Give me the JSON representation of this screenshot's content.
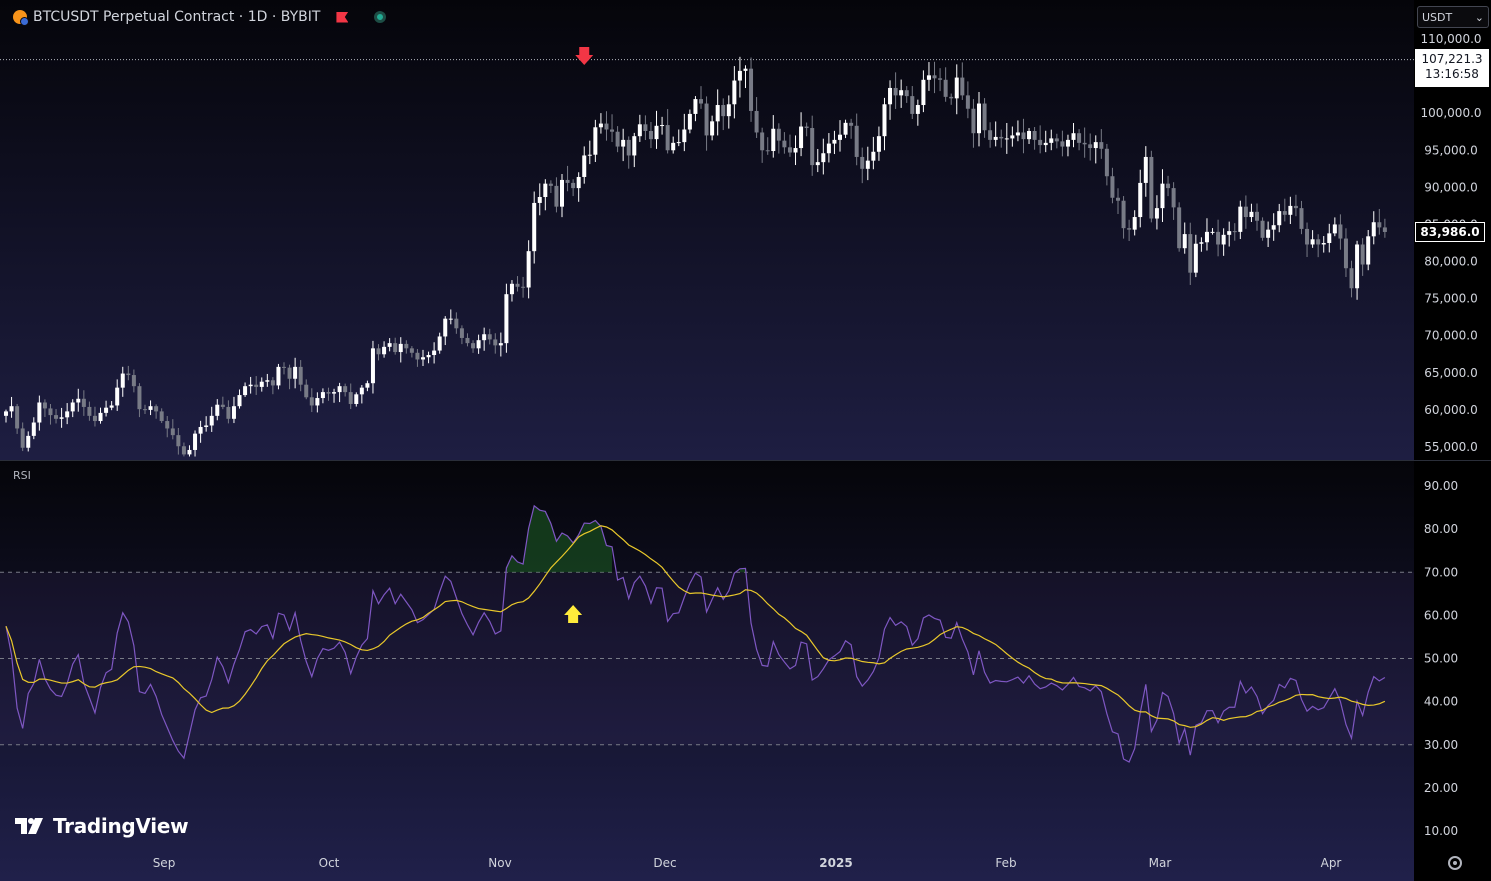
{
  "header": {
    "title": "BTCUSDT Perpetual Contract · 1D · BYBIT",
    "symbol_icon": "bitcoin-icon",
    "flag_icon": "flag-icon",
    "status_icon": "market-status-icon"
  },
  "currency_select": {
    "value": "USDT"
  },
  "price_tag": {
    "price": "107,221.3",
    "countdown": "13:16:58"
  },
  "last_price": "83,986.0",
  "logo": {
    "text": "TradingView"
  },
  "rsi_label": "RSI",
  "colors": {
    "up": "#ffffff",
    "down": "#787b86",
    "rsi": "#7e57c2",
    "rsi_ma": "#e9c82b",
    "marker_down": "#f23645",
    "marker_up": "#ffeb3b",
    "overbought_fill": "#1b5e20"
  },
  "chart_data": [
    {
      "type": "candlestick",
      "title": "BTCUSDT Perpetual Contract · 1D · BYBIT",
      "ylim": [
        53500,
        110300
      ],
      "yticks": [
        "110,000.0",
        "105,000.0",
        "100,000.0",
        "95,000.0",
        "90,000.0",
        "85,000.0",
        "80,000.0",
        "75,000.0",
        "70,000.0",
        "65,000.0",
        "60,000.0",
        "55,000.0"
      ],
      "xticks": [
        {
          "label": "Sep",
          "bold": false
        },
        {
          "label": "Oct",
          "bold": false
        },
        {
          "label": "Nov",
          "bold": false
        },
        {
          "label": "Dec",
          "bold": false
        },
        {
          "label": "2025",
          "bold": true
        },
        {
          "label": "Feb",
          "bold": false
        },
        {
          "label": "Mar",
          "bold": false
        },
        {
          "label": "Apr",
          "bold": false
        }
      ],
      "reference_line": 107221.3,
      "last_price": 83986,
      "closes": [
        59800,
        60500,
        57500,
        54900,
        56500,
        58300,
        61000,
        60200,
        59300,
        58800,
        59000,
        59800,
        61000,
        61500,
        60400,
        59200,
        58500,
        59600,
        60300,
        60600,
        63000,
        64900,
        64700,
        63200,
        60100,
        60000,
        60500,
        59800,
        58500,
        57500,
        56600,
        55100,
        54000,
        54600,
        56800,
        57700,
        57900,
        59200,
        60700,
        60400,
        58800,
        60500,
        62000,
        63200,
        63400,
        63100,
        63800,
        64000,
        63300,
        65800,
        65700,
        64200,
        65800,
        63400,
        61700,
        60600,
        61600,
        62400,
        62200,
        62400,
        63200,
        62400,
        60800,
        62100,
        63000,
        63600,
        68300,
        67500,
        68500,
        69000,
        67800,
        68900,
        68300,
        67700,
        66800,
        67100,
        67400,
        68000,
        69900,
        72300,
        72300,
        71000,
        69700,
        69000,
        68300,
        69400,
        70200,
        69500,
        68700,
        69000,
        75600,
        77000,
        76600,
        76500,
        81400,
        87900,
        88700,
        90500,
        90200,
        87400,
        91000,
        90600,
        89900,
        91400,
        94300,
        94400,
        98100,
        98600,
        97800,
        97500,
        95500,
        96400,
        94300,
        96900,
        98500,
        97600,
        96500,
        98300,
        98400,
        95000,
        96000,
        96100,
        97800,
        99900,
        101900,
        101300,
        97000,
        98900,
        101100,
        99600,
        101200,
        104400,
        105700,
        106000,
        100300,
        97400,
        95000,
        94900,
        97900,
        96300,
        95400,
        94700,
        95300,
        98200,
        98000,
        93000,
        93400,
        94600,
        95900,
        96400,
        97100,
        98700,
        98300,
        94100,
        92500,
        93600,
        94800,
        96900,
        101200,
        103400,
        102400,
        103100,
        102300,
        99900,
        101100,
        104500,
        105100,
        104700,
        104500,
        102200,
        102000,
        104800,
        102400,
        100600,
        97300,
        101300,
        97700,
        96400,
        96800,
        96600,
        96600,
        97000,
        97400,
        96500,
        97600,
        96400,
        95700,
        96000,
        96600,
        96200,
        95500,
        96400,
        97300,
        96000,
        95800,
        95300,
        96100,
        95200,
        91500,
        88600,
        88200,
        84500,
        84300,
        86000,
        90600,
        94100,
        85800,
        87200,
        90500,
        89900,
        87300,
        81800,
        83700,
        78500,
        82400,
        82600,
        84000,
        84000,
        82300,
        83600,
        84100,
        84000,
        87400,
        86000,
        86700,
        85500,
        83200,
        84300,
        84900,
        86800,
        86300,
        87500,
        87200,
        84400,
        82300,
        83000,
        82300,
        82500,
        83800,
        85000,
        83100,
        79100,
        76400,
        82300,
        79600,
        83400,
        85300,
        84600,
        83986
      ],
      "cand_rng": [
        [
          0,
          56
        ],
        [
          1,
          43
        ],
        [
          2,
          99
        ],
        [
          3,
          53
        ],
        [
          4,
          84
        ],
        [
          5,
          77
        ],
        [
          6,
          52
        ],
        [
          7,
          74
        ],
        [
          8,
          53
        ],
        [
          9,
          39
        ],
        [
          10,
          45
        ],
        [
          11,
          67
        ],
        [
          12,
          79
        ],
        [
          13,
          63
        ],
        [
          14,
          73
        ],
        [
          15,
          64
        ],
        [
          16,
          40
        ],
        [
          17,
          84
        ],
        [
          18,
          50
        ],
        [
          19,
          58
        ],
        [
          20,
          45
        ],
        [
          21,
          76
        ],
        [
          22,
          50
        ],
        [
          23,
          48
        ],
        [
          24,
          45
        ],
        [
          25,
          54
        ],
        [
          26,
          70
        ],
        [
          27,
          71
        ],
        [
          28,
          69
        ],
        [
          29,
          82
        ],
        [
          30,
          73
        ],
        [
          31,
          53
        ],
        [
          32,
          91
        ],
        [
          33,
          41
        ],
        [
          34,
          66
        ],
        [
          35,
          70
        ],
        [
          36,
          66
        ],
        [
          37,
          90
        ],
        [
          38,
          42
        ],
        [
          39,
          63
        ]
      ],
      "vol_note": "",
      "markers": [
        {
          "type": "arrow-down",
          "index": 104
        },
        {
          "type": "arrow-up",
          "index": 102
        }
      ]
    },
    {
      "type": "line",
      "title": "RSI",
      "ylim": [
        5,
        95
      ],
      "yticks": [
        "90.00",
        "80.00",
        "70.00",
        "60.00",
        "50.00",
        "40.00",
        "30.00",
        "20.00",
        "10.00"
      ],
      "bands": [
        70,
        50,
        30
      ],
      "series": [
        {
          "name": "",
          "values": [
            57.5,
            50.8,
            38.5,
            33.8,
            41.9,
            44.2,
            49.8,
            45.3,
            42.9,
            41.5,
            41.2,
            44.2,
            48.7,
            50.9,
            44.3,
            40.9,
            37.4,
            43.3,
            46.7,
            47.5,
            55.9,
            60.6,
            58.5,
            53.0,
            42.3,
            41.9,
            44.0,
            41.2,
            37.0,
            34.0,
            31.0,
            28.5,
            26.9,
            32.5,
            38.1,
            40.9,
            41.3,
            45.1,
            50.3,
            48.1,
            44.4,
            48.7,
            52.1,
            56.2,
            56.7,
            55.7,
            57.4,
            57.8,
            54.7,
            60.5,
            60.1,
            56.6,
            60.6,
            54.2,
            49.3,
            45.8,
            50.0,
            52.3,
            51.9,
            52.4,
            53.8,
            51.4,
            46.5,
            50.3,
            53.1,
            54.6,
            65.7,
            62.7,
            64.8,
            66.3,
            62.7,
            64.9,
            63.1,
            61.3,
            58.3,
            59.0,
            60.2,
            61.4,
            65.5,
            69.1,
            67.9,
            64.1,
            60.4,
            57.8,
            55.5,
            58.4,
            60.6,
            58.6,
            55.7,
            56.4,
            71.0,
            73.8,
            72.4,
            71.9,
            80.2,
            85.4,
            84.4,
            84.1,
            81.3,
            77.2,
            79.1,
            78.4,
            76.8,
            78.7,
            81.4,
            81.3,
            82.0,
            80.6,
            76.2,
            75.9,
            68.2,
            68.8,
            63.9,
            67.6,
            69.1,
            66.8,
            62.8,
            66.4,
            66.3,
            58.6,
            60.4,
            60.6,
            64.2,
            67.4,
            69.8,
            68.9,
            60.8,
            63.7,
            66.4,
            63.7,
            65.7,
            69.8,
            70.8,
            70.9,
            58.2,
            52.1,
            48.4,
            48.2,
            53.9,
            50.9,
            49.2,
            47.6,
            48.4,
            53.8,
            53.4,
            45.0,
            45.8,
            47.6,
            49.7,
            50.6,
            51.6,
            54.1,
            53.2,
            45.8,
            43.6,
            45.0,
            47.0,
            50.1,
            56.8,
            59.5,
            57.7,
            58.5,
            57.4,
            53.1,
            54.6,
            59.4,
            60.1,
            59.3,
            58.9,
            54.9,
            54.7,
            58.3,
            54.5,
            51.5,
            46.2,
            51.8,
            46.8,
            44.3,
            44.9,
            44.7,
            44.6,
            45.1,
            45.7,
            44.3,
            46.0,
            44.1,
            43.0,
            43.4,
            44.3,
            43.7,
            42.7,
            44.0,
            45.6,
            43.5,
            43.2,
            42.5,
            43.7,
            42.3,
            37.2,
            33.0,
            32.5,
            26.7,
            26.0,
            29.1,
            37.4,
            44.0,
            33.1,
            35.7,
            42.1,
            41.2,
            37.2,
            30.4,
            33.7,
            27.6,
            34.5,
            35.1,
            37.9,
            37.9,
            35.1,
            37.8,
            38.7,
            38.7,
            44.7,
            42.0,
            43.4,
            41.2,
            37.2,
            39.1,
            40.3,
            44.0,
            43.2,
            45.4,
            44.9,
            40.5,
            37.8,
            38.9,
            38.1,
            38.6,
            40.8,
            43.0,
            40.0,
            34.7,
            31.5,
            40.1,
            36.8,
            42.2,
            45.8,
            44.8,
            45.6
          ]
        },
        {
          "name": "",
          "values": []
        }
      ]
    }
  ]
}
